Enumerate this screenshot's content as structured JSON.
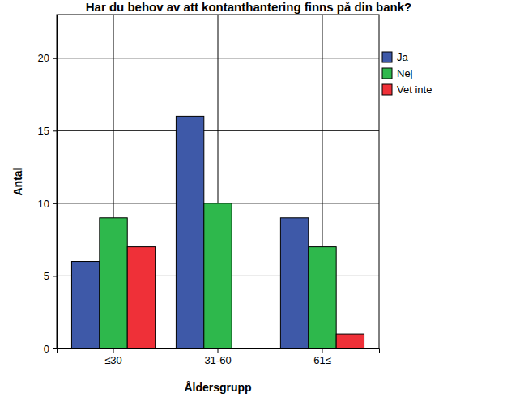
{
  "chart_data": {
    "type": "bar",
    "title": "Har du behov av att kontanthantering finns på din bank?",
    "x_label": "Åldersgrupp",
    "y_label": "Antal",
    "categories": [
      "≤30",
      "31-60",
      "61≤"
    ],
    "series": [
      {
        "name": "Ja",
        "color": "#3e59a8",
        "values": [
          6,
          16,
          9
        ]
      },
      {
        "name": "Nej",
        "color": "#2eb84c",
        "values": [
          9,
          10,
          7
        ]
      },
      {
        "name": "Vet inte",
        "color": "#ef3038",
        "values": [
          7,
          0,
          1
        ]
      }
    ],
    "ylim": [
      0,
      23
    ],
    "yticks": [
      0,
      5,
      10,
      15,
      20
    ],
    "grid": true,
    "legend": "right"
  }
}
